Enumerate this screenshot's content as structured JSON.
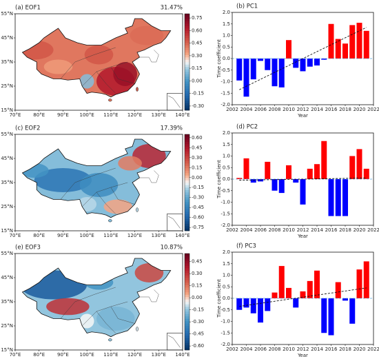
{
  "chart_data": [
    {
      "type": "map",
      "title": "(a) EOF1",
      "annotation": "31.47%",
      "xlim": [
        70,
        140
      ],
      "xticks": [
        {
          "value": 70,
          "label": "70°E"
        },
        {
          "value": 80,
          "label": "80°E"
        },
        {
          "value": 90,
          "label": "90°E"
        },
        {
          "value": 100,
          "label": "100°E"
        },
        {
          "value": 110,
          "label": "110°E"
        },
        {
          "value": 120,
          "label": "120°E"
        },
        {
          "value": 130,
          "label": "130°E"
        },
        {
          "value": 140,
          "label": "140°E"
        }
      ],
      "ylim": [
        15,
        55
      ],
      "yticks": [
        {
          "value": 15,
          "label": "15°N"
        },
        {
          "value": 25,
          "label": "25°N"
        },
        {
          "value": 35,
          "label": "35°N"
        },
        {
          "value": 45,
          "label": "45°N"
        },
        {
          "value": 55,
          "label": "55°N"
        }
      ],
      "colormap": "RdBu_r",
      "clim": [
        -0.35,
        0.8
      ],
      "cticks": [
        {
          "value": 0.75,
          "label": "0.75"
        },
        {
          "value": 0.6,
          "label": "0.60"
        },
        {
          "value": 0.45,
          "label": "0.45"
        },
        {
          "value": 0.3,
          "label": "0.30"
        },
        {
          "value": 0.15,
          "label": "0.15"
        },
        {
          "value": 0,
          "label": "0.00"
        },
        {
          "value": -0.15,
          "label": "-0.15"
        },
        {
          "value": -0.3,
          "label": "-0.30"
        }
      ]
    },
    {
      "type": "bar",
      "title": "(b) PC1",
      "xlabel": "Year",
      "ylabel": "Time coefficient",
      "x": [
        2003,
        2004,
        2005,
        2006,
        2007,
        2008,
        2009,
        2010,
        2011,
        2012,
        2013,
        2014,
        2015,
        2016,
        2017,
        2018,
        2019,
        2020,
        2021
      ],
      "values": [
        -0.95,
        -1.65,
        -0.9,
        -0.1,
        -0.5,
        -1.2,
        -1.25,
        0.8,
        -0.4,
        -0.55,
        -0.35,
        -0.3,
        -0.05,
        1.5,
        0.85,
        0.65,
        1.45,
        1.55,
        1.2
      ],
      "positive_color": "#ff0000",
      "negative_color": "#0000ff",
      "trend": {
        "x": [
          2003,
          2021
        ],
        "y": [
          -1.35,
          1.35
        ]
      },
      "xlim": [
        2002,
        2022
      ],
      "xticks": [
        2002,
        2004,
        2006,
        2008,
        2010,
        2012,
        2014,
        2016,
        2018,
        2020,
        2022
      ],
      "ylim": [
        -2,
        2
      ],
      "yticks": [
        {
          "value": -2,
          "label": "-2.0"
        },
        {
          "value": -1.5,
          "label": "-1.5"
        },
        {
          "value": -1,
          "label": "-1.0"
        },
        {
          "value": -0.5,
          "label": "-0.5"
        },
        {
          "value": 0,
          "label": "0.0"
        },
        {
          "value": 0.5,
          "label": "0.5"
        },
        {
          "value": 1,
          "label": "1.0"
        },
        {
          "value": 1.5,
          "label": "1.5"
        },
        {
          "value": 2,
          "label": "2.0"
        }
      ]
    },
    {
      "type": "map",
      "title": "(c) EOF2",
      "annotation": "17.39%",
      "xlim": [
        70,
        140
      ],
      "xticks": [
        {
          "value": 70,
          "label": "70°E"
        },
        {
          "value": 80,
          "label": "80°E"
        },
        {
          "value": 90,
          "label": "90°E"
        },
        {
          "value": 100,
          "label": "100°E"
        },
        {
          "value": 110,
          "label": "110°E"
        },
        {
          "value": 120,
          "label": "120°E"
        },
        {
          "value": 130,
          "label": "130°E"
        },
        {
          "value": 140,
          "label": "140°E"
        }
      ],
      "ylim": [
        15,
        55
      ],
      "yticks": [
        {
          "value": 15,
          "label": "15°N"
        },
        {
          "value": 25,
          "label": "25°N"
        },
        {
          "value": 35,
          "label": "35°N"
        },
        {
          "value": 45,
          "label": "45°N"
        },
        {
          "value": 55,
          "label": "55°N"
        }
      ],
      "colormap": "RdBu_r",
      "clim": [
        -0.8,
        0.65
      ],
      "cticks": [
        {
          "value": 0.6,
          "label": "0.60"
        },
        {
          "value": 0.45,
          "label": "0.45"
        },
        {
          "value": 0.3,
          "label": "0.30"
        },
        {
          "value": 0.15,
          "label": "0.15"
        },
        {
          "value": 0,
          "label": "0.00"
        },
        {
          "value": -0.15,
          "label": "-0.15"
        },
        {
          "value": -0.3,
          "label": "-0.30"
        },
        {
          "value": -0.45,
          "label": "-0.45"
        },
        {
          "value": -0.6,
          "label": "-0.60"
        },
        {
          "value": -0.75,
          "label": "-0.75"
        }
      ]
    },
    {
      "type": "bar",
      "title": "(d) PC2",
      "xlabel": "Year",
      "ylabel": "Time coefficient",
      "x": [
        2003,
        2004,
        2005,
        2006,
        2007,
        2008,
        2009,
        2010,
        2011,
        2012,
        2013,
        2014,
        2015,
        2016,
        2017,
        2018,
        2019,
        2020,
        2021
      ],
      "values": [
        0.05,
        0.9,
        -0.15,
        -0.1,
        0.75,
        -0.5,
        -0.6,
        0.6,
        -0.15,
        -1.1,
        0.45,
        0.65,
        1.65,
        -1.6,
        -1.6,
        -1.6,
        1.0,
        1.3,
        0.45
      ],
      "positive_color": "#ff0000",
      "negative_color": "#0000ff",
      "trend": {
        "x": [
          2003,
          2021
        ],
        "y": [
          -0.05,
          0.05
        ]
      },
      "xlim": [
        2002,
        2022
      ],
      "xticks": [
        2002,
        2004,
        2006,
        2008,
        2010,
        2012,
        2014,
        2016,
        2018,
        2020,
        2022
      ],
      "ylim": [
        -2,
        2
      ],
      "yticks": [
        {
          "value": -2,
          "label": "-2.0"
        },
        {
          "value": -1.5,
          "label": "-1.5"
        },
        {
          "value": -1,
          "label": "-1.0"
        },
        {
          "value": -0.5,
          "label": "-0.5"
        },
        {
          "value": 0,
          "label": "0.0"
        },
        {
          "value": 0.5,
          "label": "0.5"
        },
        {
          "value": 1,
          "label": "1.0"
        },
        {
          "value": 1.5,
          "label": "1.5"
        },
        {
          "value": 2,
          "label": "2.0"
        }
      ]
    },
    {
      "type": "map",
      "title": "(e) EOF3",
      "annotation": "10.87%",
      "xlim": [
        70,
        140
      ],
      "xticks": [
        {
          "value": 70,
          "label": "70°E"
        },
        {
          "value": 80,
          "label": "80°E"
        },
        {
          "value": 90,
          "label": "90°E"
        },
        {
          "value": 100,
          "label": "100°E"
        },
        {
          "value": 110,
          "label": "110°E"
        },
        {
          "value": 120,
          "label": "120°E"
        },
        {
          "value": 130,
          "label": "130°E"
        },
        {
          "value": 140,
          "label": "140°E"
        }
      ],
      "ylim": [
        15,
        55
      ],
      "yticks": [
        {
          "value": 15,
          "label": "15°N"
        },
        {
          "value": 25,
          "label": "25°N"
        },
        {
          "value": 35,
          "label": "35°N"
        },
        {
          "value": 45,
          "label": "45°N"
        },
        {
          "value": 55,
          "label": "55°N"
        }
      ],
      "colormap": "RdBu_r",
      "clim": [
        -0.65,
        0.55
      ],
      "cticks": [
        {
          "value": 0.45,
          "label": "0.45"
        },
        {
          "value": 0.3,
          "label": "0.30"
        },
        {
          "value": 0.15,
          "label": "0.15"
        },
        {
          "value": 0,
          "label": "0.00"
        },
        {
          "value": -0.15,
          "label": "-0.15"
        },
        {
          "value": -0.3,
          "label": "-0.30"
        },
        {
          "value": -0.45,
          "label": "-0.45"
        },
        {
          "value": -0.6,
          "label": "-0.60"
        }
      ]
    },
    {
      "type": "bar",
      "title": "(f) PC3",
      "xlabel": "Year",
      "ylabel": "Time coefficient",
      "x": [
        2003,
        2004,
        2005,
        2006,
        2007,
        2008,
        2009,
        2010,
        2011,
        2012,
        2013,
        2014,
        2015,
        2016,
        2017,
        2018,
        2019,
        2020,
        2021
      ],
      "values": [
        -0.5,
        -0.4,
        -0.65,
        -1.05,
        -0.55,
        0.25,
        1.4,
        0.45,
        -0.4,
        0.3,
        0.75,
        1.2,
        -1.5,
        -1.6,
        0.7,
        -0.1,
        -1.1,
        1.25,
        1.6
      ],
      "positive_color": "#ff0000",
      "negative_color": "#0000ff",
      "trend": {
        "x": [
          2003,
          2021
        ],
        "y": [
          -0.35,
          0.45
        ]
      },
      "xlim": [
        2002,
        2022
      ],
      "xticks": [
        2002,
        2004,
        2006,
        2008,
        2010,
        2012,
        2014,
        2016,
        2018,
        2020,
        2022
      ],
      "ylim": [
        -2,
        2
      ],
      "yticks": [
        {
          "value": -2,
          "label": "-2.0"
        },
        {
          "value": -1.5,
          "label": "-1.5"
        },
        {
          "value": -1,
          "label": "-1.0"
        },
        {
          "value": -0.5,
          "label": "-0.5"
        },
        {
          "value": 0,
          "label": "0.0"
        },
        {
          "value": 0.5,
          "label": "0.5"
        },
        {
          "value": 1,
          "label": "1.0"
        },
        {
          "value": 1.5,
          "label": "1.5"
        },
        {
          "value": 2,
          "label": "2.0"
        }
      ]
    }
  ]
}
